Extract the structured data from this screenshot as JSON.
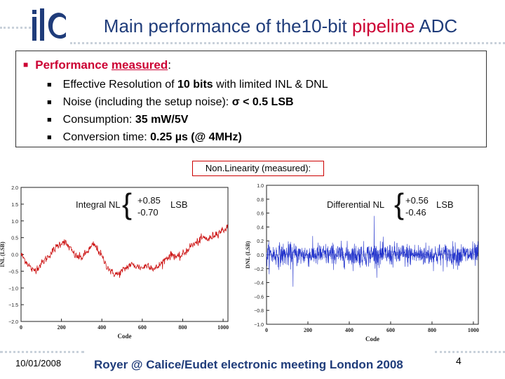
{
  "header": {
    "title_pre": "Main performance of the10-bit ",
    "title_highlight": "pipeline",
    "title_post": " ADC"
  },
  "performance": {
    "heading_pre": "Performance ",
    "heading_underlined": "measured",
    "heading_colon": ":",
    "items": [
      {
        "pre": "Effective Resolution of ",
        "bold": "10 bits",
        "post": " with limited INL & DNL"
      },
      {
        "pre": "Noise (including the setup noise): ",
        "bold": "σ < 0.5 LSB",
        "post": ""
      },
      {
        "pre": "Consumption: ",
        "bold": "35 mW/5V",
        "post": ""
      },
      {
        "pre": "Conversion time: ",
        "bold": "0.25 µs (@ 4MHz)",
        "post": ""
      }
    ]
  },
  "nonlinearity_label": "Non.Linearity (measured):",
  "annotations": {
    "inl_label": "Integral NL",
    "inl_max": "+0.85",
    "inl_min": "-0.70",
    "inl_unit": "LSB",
    "dnl_label": "Differential NL",
    "dnl_max": "+0.56",
    "dnl_min": "-0.46",
    "dnl_unit": "LSB"
  },
  "chart_data": [
    {
      "type": "line",
      "xlabel": "Code",
      "ylabel": "INL (LSB)",
      "xlim": [
        0,
        1024
      ],
      "ylim": [
        -2.0,
        2.0
      ],
      "xticks": [
        0,
        200,
        400,
        600,
        800,
        1000
      ],
      "yticks": [
        2.0,
        1.5,
        1.0,
        0.5,
        0.0,
        -0.5,
        -1.0,
        -1.5,
        -2.0
      ],
      "ytick_labels": [
        "2.0",
        "1.5",
        "1.0",
        "0.5",
        "0.0",
        "−0.5",
        "−1.0",
        "−1.5",
        "−2.0"
      ],
      "x": [
        0,
        30,
        60,
        90,
        120,
        150,
        180,
        210,
        240,
        270,
        300,
        330,
        360,
        390,
        420,
        450,
        480,
        510,
        540,
        570,
        600,
        630,
        660,
        690,
        720,
        750,
        780,
        810,
        840,
        870,
        900,
        930,
        960,
        990,
        1023
      ],
      "y": [
        0.0,
        -0.25,
        -0.5,
        -0.35,
        -0.15,
        0.05,
        0.25,
        0.4,
        0.2,
        -0.05,
        -0.1,
        0.1,
        0.3,
        0.05,
        -0.3,
        -0.55,
        -0.6,
        -0.45,
        -0.3,
        -0.35,
        -0.4,
        -0.3,
        -0.45,
        -0.3,
        -0.1,
        0.0,
        -0.1,
        0.05,
        0.25,
        0.35,
        0.5,
        0.45,
        0.6,
        0.7,
        0.8
      ],
      "color": "#cc1111"
    },
    {
      "type": "line",
      "xlabel": "Code",
      "ylabel": "DNL (LSB)",
      "xlim": [
        0,
        1024
      ],
      "ylim": [
        -1.0,
        1.0
      ],
      "xticks": [
        0,
        200,
        400,
        600,
        800,
        1000
      ],
      "yticks": [
        1.0,
        0.8,
        0.6,
        0.4,
        0.2,
        0.0,
        -0.2,
        -0.4,
        -0.6,
        -0.8,
        -1.0
      ],
      "ytick_labels": [
        "1.0",
        "0.8",
        "0.6",
        "0.4",
        "0.2",
        "0.0",
        "−0.2",
        "−0.4",
        "−0.6",
        "−0.8",
        "−1.0"
      ],
      "noise_amplitude": 0.15,
      "max": 0.56,
      "min": -0.46,
      "color": "#2233cc"
    }
  ],
  "footer": {
    "date": "10/01/2008",
    "text": "Royer @ Calice/Eudet electronic meeting London 2008",
    "page": "4"
  }
}
